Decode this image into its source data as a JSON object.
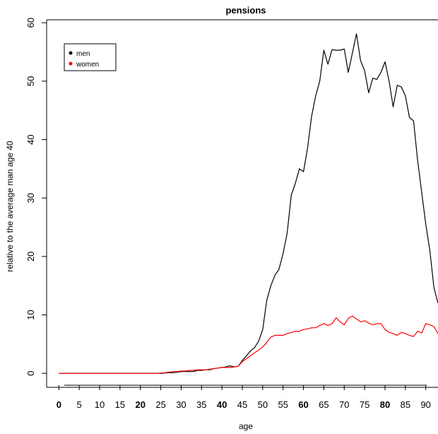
{
  "chart_data": {
    "type": "line",
    "title": "pensions",
    "xlabel": "age",
    "ylabel": "relative to the average man age 40",
    "xlim": [
      -3,
      93
    ],
    "ylim": [
      -2.4,
      60.5
    ],
    "x_ticks": [
      {
        "value": 0,
        "label": "0",
        "bold": true
      },
      {
        "value": 5,
        "label": "5",
        "bold": false
      },
      {
        "value": 10,
        "label": "10",
        "bold": false
      },
      {
        "value": 15,
        "label": "15",
        "bold": false
      },
      {
        "value": 20,
        "label": "20",
        "bold": true
      },
      {
        "value": 25,
        "label": "25",
        "bold": false
      },
      {
        "value": 30,
        "label": "30",
        "bold": false
      },
      {
        "value": 35,
        "label": "35",
        "bold": false
      },
      {
        "value": 40,
        "label": "40",
        "bold": true
      },
      {
        "value": 45,
        "label": "45",
        "bold": false
      },
      {
        "value": 50,
        "label": "50",
        "bold": false
      },
      {
        "value": 55,
        "label": "55",
        "bold": false
      },
      {
        "value": 60,
        "label": "60",
        "bold": true
      },
      {
        "value": 65,
        "label": "65",
        "bold": false
      },
      {
        "value": 70,
        "label": "70",
        "bold": false
      },
      {
        "value": 75,
        "label": "75",
        "bold": false
      },
      {
        "value": 80,
        "label": "80",
        "bold": true
      },
      {
        "value": 85,
        "label": "85",
        "bold": false
      },
      {
        "value": 90,
        "label": "90",
        "bold": false
      }
    ],
    "y_ticks": [
      {
        "value": 0,
        "label": "0"
      },
      {
        "value": 10,
        "label": "10"
      },
      {
        "value": 20,
        "label": "20"
      },
      {
        "value": 30,
        "label": "30"
      },
      {
        "value": 40,
        "label": "40"
      },
      {
        "value": 50,
        "label": "50"
      },
      {
        "value": 60,
        "label": "60"
      }
    ],
    "legend": {
      "position": "top-left",
      "entries": [
        {
          "name": "men",
          "color": "#000000"
        },
        {
          "name": "women",
          "color": "#ff0000"
        }
      ]
    },
    "series": [
      {
        "name": "men",
        "color": "#000000",
        "x": [
          0,
          1,
          2,
          3,
          4,
          5,
          6,
          7,
          8,
          9,
          10,
          11,
          12,
          13,
          14,
          15,
          16,
          17,
          18,
          19,
          20,
          21,
          22,
          23,
          24,
          25,
          26,
          27,
          28,
          29,
          30,
          31,
          32,
          33,
          34,
          35,
          36,
          37,
          38,
          39,
          40,
          41,
          42,
          43,
          44,
          45,
          46,
          47,
          48,
          49,
          50,
          51,
          52,
          53,
          54,
          55,
          56,
          57,
          58,
          59,
          60,
          61,
          62,
          63,
          64,
          65,
          66,
          67,
          68,
          69,
          70,
          71,
          72,
          73,
          74,
          75,
          76,
          77,
          78,
          79,
          80,
          81,
          82,
          83,
          84,
          85,
          86,
          87,
          88,
          89,
          90,
          91,
          92,
          93
        ],
        "y": [
          0,
          0,
          0,
          0,
          0,
          0,
          0,
          0,
          0,
          0,
          0,
          0,
          0,
          0,
          0,
          0,
          0,
          0,
          0,
          0,
          0,
          0,
          0,
          0,
          0,
          0,
          0.05,
          0.1,
          0.1,
          0.2,
          0.3,
          0.3,
          0.3,
          0.3,
          0.5,
          0.5,
          0.6,
          0.6,
          0.8,
          0.9,
          1.0,
          1.1,
          1.3,
          1.1,
          1.2,
          2.2,
          3.0,
          3.8,
          4.4,
          5.5,
          7.5,
          12.5,
          15.0,
          16.8,
          17.8,
          20.5,
          24.0,
          30.5,
          32.5,
          35.0,
          34.5,
          38.5,
          44.0,
          47.5,
          50.0,
          55.3,
          52.9,
          55.4,
          55.3,
          55.3,
          55.5,
          51.5,
          54.8,
          58.1,
          53.5,
          51.8,
          48.0,
          50.5,
          50.3,
          51.5,
          53.3,
          50.0,
          45.6,
          49.3,
          49.0,
          47.5,
          43.8,
          43.2,
          36.5,
          31.0,
          25.5,
          21.0,
          14.7,
          12.0
        ]
      },
      {
        "name": "women",
        "color": "#ff0000",
        "x": [
          0,
          1,
          2,
          3,
          4,
          5,
          6,
          7,
          8,
          9,
          10,
          11,
          12,
          13,
          14,
          15,
          16,
          17,
          18,
          19,
          20,
          21,
          22,
          23,
          24,
          25,
          26,
          27,
          28,
          29,
          30,
          31,
          32,
          33,
          34,
          35,
          36,
          37,
          38,
          39,
          40,
          41,
          42,
          43,
          44,
          45,
          46,
          47,
          48,
          49,
          50,
          51,
          52,
          53,
          54,
          55,
          56,
          57,
          58,
          59,
          60,
          61,
          62,
          63,
          64,
          65,
          66,
          67,
          68,
          69,
          70,
          71,
          72,
          73,
          74,
          75,
          76,
          77,
          78,
          79,
          80,
          81,
          82,
          83,
          84,
          85,
          86,
          87,
          88,
          89,
          90,
          91,
          92,
          93
        ],
        "y": [
          0,
          0,
          0,
          0,
          0,
          0,
          0,
          0,
          0,
          0,
          0,
          0,
          0,
          0,
          0,
          0,
          0,
          0,
          0,
          0,
          0,
          0,
          0,
          0,
          0,
          0.05,
          0.1,
          0.2,
          0.3,
          0.3,
          0.4,
          0.4,
          0.5,
          0.5,
          0.6,
          0.6,
          0.6,
          0.7,
          0.8,
          0.9,
          1.0,
          1.0,
          1.0,
          1.1,
          1.2,
          2.0,
          2.5,
          3.0,
          3.5,
          4.0,
          4.5,
          5.3,
          6.2,
          6.5,
          6.5,
          6.5,
          6.8,
          7.0,
          7.2,
          7.2,
          7.5,
          7.6,
          7.8,
          7.8,
          8.2,
          8.5,
          8.2,
          8.5,
          9.5,
          8.8,
          8.3,
          9.4,
          9.8,
          9.3,
          8.8,
          9.0,
          8.6,
          8.3,
          8.5,
          8.5,
          7.5,
          7.0,
          6.8,
          6.5,
          7.0,
          6.8,
          6.5,
          6.3,
          7.2,
          6.9,
          8.5,
          8.3,
          8.0,
          6.8
        ]
      }
    ]
  }
}
